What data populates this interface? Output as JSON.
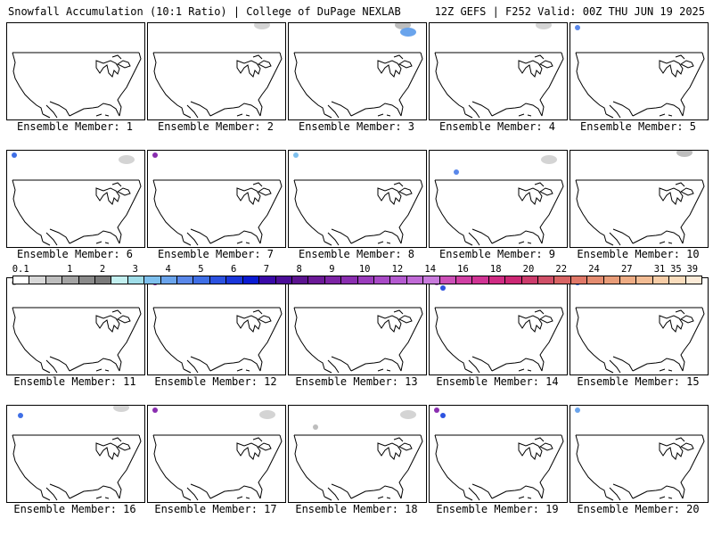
{
  "header": {
    "left": "Snowfall Accumulation (10:1 Ratio) | College of DuPage NEXLAB",
    "right": "12Z GEFS | F252 Valid: 00Z THU JUN 19 2025"
  },
  "colorbar": {
    "labels": [
      "0.1",
      "1",
      "2",
      "3",
      "4",
      "5",
      "6",
      "7",
      "8",
      "9",
      "10",
      "12",
      "14",
      "16",
      "18",
      "20",
      "22",
      "24",
      "27",
      "31",
      "35",
      "39"
    ],
    "colors": [
      "#ffffff",
      "#d8d8d8",
      "#bdbdbd",
      "#a4a4a4",
      "#8a8a8a",
      "#7a7a7a",
      "#c2efef",
      "#9fdde8",
      "#7ec0ee",
      "#6aa4ec",
      "#5a88ea",
      "#3f6fe6",
      "#2c52e0",
      "#1a36da",
      "#0a1bd2",
      "#3a0aa8",
      "#4c0e98",
      "#5c1490",
      "#6c1a98",
      "#7c24a4",
      "#8a2eb0",
      "#9a3cbc",
      "#a84ac6",
      "#b45ad0",
      "#c06ad6",
      "#c87adc",
      "#cc50b8",
      "#d040a4",
      "#d03494",
      "#d02c84",
      "#cc2874",
      "#cc3c6c",
      "#d05068",
      "#d86464",
      "#e07868",
      "#e48c70",
      "#e89c78",
      "#eeac84",
      "#f2bc94",
      "#f6cca6",
      "#f9dcbc",
      "#fcebd8"
    ]
  },
  "panels": [
    {
      "member": "Ensemble Member: 1",
      "patches": []
    },
    {
      "member": "Ensemble Member: 2",
      "patches": [
        {
          "region": "northeast",
          "color": "#d4d4d4"
        }
      ]
    },
    {
      "member": "Ensemble Member: 3",
      "patches": [
        {
          "region": "northeast",
          "color": "#bdbdbd"
        },
        {
          "region": "northeast",
          "color": "#6aa4ec"
        }
      ]
    },
    {
      "member": "Ensemble Member: 4",
      "patches": [
        {
          "region": "northeast",
          "color": "#d4d4d4"
        }
      ]
    },
    {
      "member": "Ensemble Member: 5",
      "patches": [
        {
          "region": "northwest",
          "color": "#5a88ea"
        }
      ]
    },
    {
      "member": "Ensemble Member: 6",
      "patches": [
        {
          "region": "northwest",
          "color": "#3f6fe6"
        },
        {
          "region": "northeast",
          "color": "#d4d4d4"
        }
      ]
    },
    {
      "member": "Ensemble Member: 7",
      "patches": [
        {
          "region": "northwest",
          "color": "#8a2eb0"
        }
      ]
    },
    {
      "member": "Ensemble Member: 8",
      "patches": [
        {
          "region": "northwest",
          "color": "#7ec0ee"
        }
      ]
    },
    {
      "member": "Ensemble Member: 9",
      "patches": [
        {
          "region": "west",
          "color": "#5a88ea"
        },
        {
          "region": "northeast",
          "color": "#d4d4d4"
        }
      ]
    },
    {
      "member": "Ensemble Member: 10",
      "patches": [
        {
          "region": "northeast",
          "color": "#bdbdbd"
        }
      ]
    },
    {
      "member": "Ensemble Member: 11",
      "patches": [
        {
          "region": "northwest",
          "color": "#a4a4a4"
        }
      ]
    },
    {
      "member": "Ensemble Member: 12",
      "patches": [
        {
          "region": "northwest",
          "color": "#8a2eb0"
        }
      ]
    },
    {
      "member": "Ensemble Member: 13",
      "patches": []
    },
    {
      "member": "Ensemble Member: 14",
      "patches": [
        {
          "region": "northwest",
          "color": "#b45ad0"
        },
        {
          "region": "northwest",
          "color": "#2c52e0"
        }
      ]
    },
    {
      "member": "Ensemble Member: 15",
      "patches": [
        {
          "region": "northwest",
          "color": "#3f6fe6"
        }
      ]
    },
    {
      "member": "Ensemble Member: 16",
      "patches": [
        {
          "region": "northeast",
          "color": "#d4d4d4"
        },
        {
          "region": "northwest",
          "color": "#3f6fe6"
        }
      ]
    },
    {
      "member": "Ensemble Member: 17",
      "patches": [
        {
          "region": "northwest",
          "color": "#8a2eb0"
        },
        {
          "region": "northeast",
          "color": "#d4d4d4"
        }
      ]
    },
    {
      "member": "Ensemble Member: 18",
      "patches": [
        {
          "region": "west",
          "color": "#bdbdbd"
        },
        {
          "region": "northeast",
          "color": "#d4d4d4"
        }
      ]
    },
    {
      "member": "Ensemble Member: 19",
      "patches": [
        {
          "region": "northwest",
          "color": "#8a2eb0"
        },
        {
          "region": "northwest",
          "color": "#2c52e0"
        }
      ]
    },
    {
      "member": "Ensemble Member: 20",
      "patches": [
        {
          "region": "northwest",
          "color": "#6aa4ec"
        }
      ]
    }
  ]
}
